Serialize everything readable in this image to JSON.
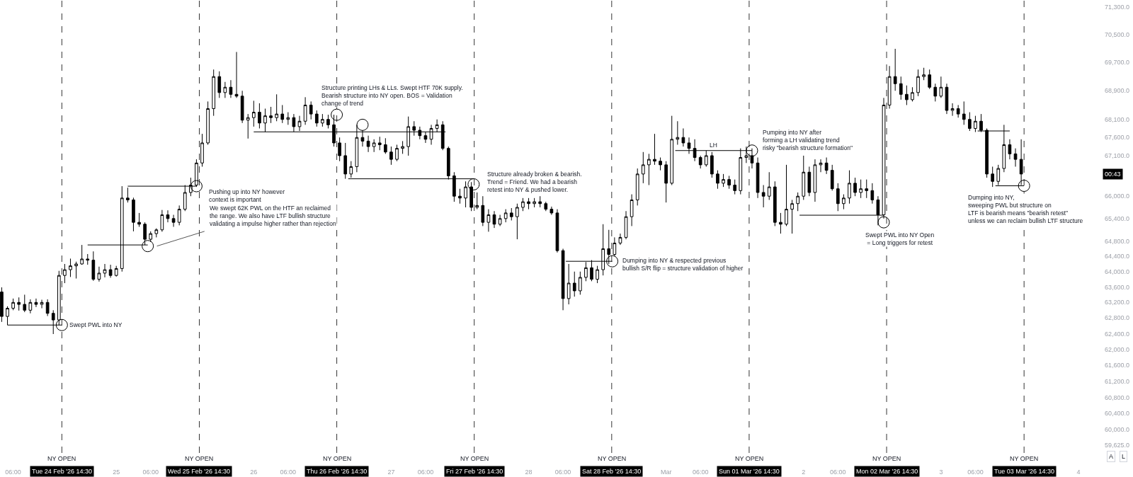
{
  "chart_data": {
    "type": "candlestick",
    "color": "#000000",
    "log": true,
    "xlim": [
      "2026-02-24T03:42",
      "2026-03-04"
    ],
    "ylim": [
      59625,
      71500
    ],
    "xticks": [
      {
        "value": "2026-02-24T06:00",
        "label": "06:00"
      },
      {
        "value": "2026-02-24T14:30",
        "label": "Tue 24 Feb '26 14:30"
      },
      {
        "value": "2026-02-25",
        "label": "25"
      },
      {
        "value": "2026-02-25T06:00",
        "label": "06:00"
      },
      {
        "value": "2026-02-25T14:30",
        "label": "Wed 25 Feb '26 14:30"
      },
      {
        "value": "2026-02-26",
        "label": "26"
      },
      {
        "value": "2026-02-26T06:00",
        "label": "06:00"
      },
      {
        "value": "2026-02-26T14:30",
        "label": "Thu 26 Feb '26 14:30"
      },
      {
        "value": "2026-02-27",
        "label": "27"
      },
      {
        "value": "2026-02-27T06:00",
        "label": "06:00"
      },
      {
        "value": "2026-02-27T14:30",
        "label": "Fri 27 Feb '26 14:30"
      },
      {
        "value": "2026-02-28",
        "label": "28"
      },
      {
        "value": "2026-02-28T06:00",
        "label": "06:00"
      },
      {
        "value": "2026-02-28T14:30",
        "label": "Sat 28 Feb '26 14:30"
      },
      {
        "value": "2026-03-01",
        "label": "Mar"
      },
      {
        "value": "2026-03-01T06:00",
        "label": "06:00"
      },
      {
        "value": "2026-03-01T14:30",
        "label": "Sun 01 Mar '26 14:30"
      },
      {
        "value": "2026-03-02",
        "label": "2"
      },
      {
        "value": "2026-03-02T06:00",
        "label": "06:00"
      },
      {
        "value": "2026-03-02T14:30",
        "label": "Mon 02 Mar '26 14:30"
      },
      {
        "value": "2026-03-03",
        "label": "3"
      },
      {
        "value": "2026-03-03T06:00",
        "label": "06:00"
      },
      {
        "value": "2026-03-03T14:30",
        "label": "Tue 03 Mar '26 14:30"
      },
      {
        "value": "2026-03-04",
        "label": "4"
      }
    ],
    "yticks": [
      {
        "value": 71300,
        "label": "71,300.0"
      },
      {
        "value": 70500,
        "label": "70,500.0"
      },
      {
        "value": 69700,
        "label": "69,700.0"
      },
      {
        "value": 68900,
        "label": "68,900.0"
      },
      {
        "value": 68100,
        "label": "68,100.0"
      },
      {
        "value": 67600,
        "label": "67,600.0"
      },
      {
        "value": 67100,
        "label": "67,100.0"
      },
      {
        "value": 66000,
        "label": "66,000.0"
      },
      {
        "value": 65400,
        "label": "65,400.0"
      },
      {
        "value": 64800,
        "label": "64,800.0"
      },
      {
        "value": 64400,
        "label": "64,400.0"
      },
      {
        "value": 64000,
        "label": "64,000.0"
      },
      {
        "value": 63600,
        "label": "63,600.0"
      },
      {
        "value": 63200,
        "label": "63,200.0"
      },
      {
        "value": 62800,
        "label": "62,800.0"
      },
      {
        "value": 62400,
        "label": "62,400.0"
      },
      {
        "value": 62000,
        "label": "62,000.0"
      },
      {
        "value": 61600,
        "label": "61,600.0"
      },
      {
        "value": 61200,
        "label": "61,200.0"
      },
      {
        "value": 60800,
        "label": "60,800.0"
      },
      {
        "value": 60400,
        "label": "60,400.0"
      },
      {
        "value": 60000,
        "label": "60,000.0"
      },
      {
        "value": 59625,
        "label": "59,625.0"
      }
    ],
    "x": [
      "2026-02-24T04:00",
      "2026-02-24T05:00",
      "2026-02-24T06:00",
      "2026-02-24T07:00",
      "2026-02-24T08:00",
      "2026-02-24T09:00",
      "2026-02-24T10:00",
      "2026-02-24T11:00",
      "2026-02-24T12:00",
      "2026-02-24T13:00",
      "2026-02-24T14:00",
      "2026-02-24T15:00",
      "2026-02-24T16:00",
      "2026-02-24T17:00",
      "2026-02-24T18:00",
      "2026-02-24T19:00",
      "2026-02-24T20:00",
      "2026-02-24T21:00",
      "2026-02-24T22:00",
      "2026-02-24T23:00",
      "2026-02-25T00:00",
      "2026-02-25T01:00",
      "2026-02-25T02:00",
      "2026-02-25T03:00",
      "2026-02-25T04:00",
      "2026-02-25T05:00",
      "2026-02-25T06:00",
      "2026-02-25T07:00",
      "2026-02-25T08:00",
      "2026-02-25T09:00",
      "2026-02-25T10:00",
      "2026-02-25T11:00",
      "2026-02-25T12:00",
      "2026-02-25T13:00",
      "2026-02-25T14:00",
      "2026-02-25T15:00",
      "2026-02-25T16:00",
      "2026-02-25T17:00",
      "2026-02-25T18:00",
      "2026-02-25T19:00",
      "2026-02-25T20:00",
      "2026-02-25T21:00",
      "2026-02-25T22:00",
      "2026-02-25T23:00",
      "2026-02-26T00:00",
      "2026-02-26T01:00",
      "2026-02-26T02:00",
      "2026-02-26T03:00",
      "2026-02-26T04:00",
      "2026-02-26T05:00",
      "2026-02-26T06:00",
      "2026-02-26T07:00",
      "2026-02-26T08:00",
      "2026-02-26T09:00",
      "2026-02-26T10:00",
      "2026-02-26T11:00",
      "2026-02-26T12:00",
      "2026-02-26T13:00",
      "2026-02-26T14:00",
      "2026-02-26T15:00",
      "2026-02-26T16:00",
      "2026-02-26T17:00",
      "2026-02-26T18:00",
      "2026-02-26T19:00",
      "2026-02-26T20:00",
      "2026-02-26T21:00",
      "2026-02-26T22:00",
      "2026-02-26T23:00",
      "2026-02-27T00:00",
      "2026-02-27T01:00",
      "2026-02-27T02:00",
      "2026-02-27T03:00",
      "2026-02-27T04:00",
      "2026-02-27T05:00",
      "2026-02-27T06:00",
      "2026-02-27T07:00",
      "2026-02-27T08:00",
      "2026-02-27T09:00",
      "2026-02-27T10:00",
      "2026-02-27T11:00",
      "2026-02-27T12:00",
      "2026-02-27T13:00",
      "2026-02-27T14:00",
      "2026-02-27T15:00",
      "2026-02-27T16:00",
      "2026-02-27T17:00",
      "2026-02-27T18:00",
      "2026-02-27T19:00",
      "2026-02-27T20:00",
      "2026-02-27T21:00",
      "2026-02-27T22:00",
      "2026-02-27T23:00",
      "2026-02-28T00:00",
      "2026-02-28T01:00",
      "2026-02-28T02:00",
      "2026-02-28T03:00",
      "2026-02-28T04:00",
      "2026-02-28T05:00",
      "2026-02-28T06:00",
      "2026-02-28T07:00",
      "2026-02-28T08:00",
      "2026-02-28T09:00",
      "2026-02-28T10:00",
      "2026-02-28T11:00",
      "2026-02-28T12:00",
      "2026-02-28T13:00",
      "2026-02-28T14:00",
      "2026-02-28T15:00",
      "2026-02-28T16:00",
      "2026-02-28T17:00",
      "2026-02-28T18:00",
      "2026-02-28T19:00",
      "2026-02-28T20:00",
      "2026-02-28T21:00",
      "2026-02-28T22:00",
      "2026-02-28T23:00",
      "2026-03-01T00:00",
      "2026-03-01T01:00",
      "2026-03-01T02:00",
      "2026-03-01T03:00",
      "2026-03-01T04:00",
      "2026-03-01T05:00",
      "2026-03-01T06:00",
      "2026-03-01T07:00",
      "2026-03-01T08:00",
      "2026-03-01T09:00",
      "2026-03-01T10:00",
      "2026-03-01T11:00",
      "2026-03-01T12:00",
      "2026-03-01T13:00",
      "2026-03-01T14:00",
      "2026-03-01T15:00",
      "2026-03-01T16:00",
      "2026-03-01T17:00",
      "2026-03-01T18:00",
      "2026-03-01T19:00",
      "2026-03-01T20:00",
      "2026-03-01T21:00",
      "2026-03-01T22:00",
      "2026-03-01T23:00",
      "2026-03-02T00:00",
      "2026-03-02T01:00",
      "2026-03-02T02:00",
      "2026-03-02T03:00",
      "2026-03-02T04:00",
      "2026-03-02T05:00",
      "2026-03-02T06:00",
      "2026-03-02T07:00",
      "2026-03-02T08:00",
      "2026-03-02T09:00",
      "2026-03-02T10:00",
      "2026-03-02T11:00",
      "2026-03-02T12:00",
      "2026-03-02T13:00",
      "2026-03-02T14:00",
      "2026-03-02T15:00",
      "2026-03-02T16:00",
      "2026-03-02T17:00",
      "2026-03-02T18:00",
      "2026-03-02T19:00",
      "2026-03-02T20:00",
      "2026-03-02T21:00",
      "2026-03-02T22:00",
      "2026-03-02T23:00",
      "2026-03-03T00:00",
      "2026-03-03T01:00",
      "2026-03-03T02:00",
      "2026-03-03T03:00",
      "2026-03-03T04:00",
      "2026-03-03T05:00",
      "2026-03-03T06:00",
      "2026-03-03T07:00",
      "2026-03-03T08:00",
      "2026-03-03T09:00",
      "2026-03-03T10:00",
      "2026-03-03T11:00",
      "2026-03-03T12:00",
      "2026-03-03T13:00",
      "2026-03-03T14:00"
    ],
    "ohlc": [
      [
        63470,
        63590,
        62700,
        62840
      ],
      [
        62840,
        63100,
        62620,
        63050
      ],
      [
        63050,
        63300,
        63000,
        63200
      ],
      [
        63200,
        63330,
        62990,
        63150
      ],
      [
        63150,
        63400,
        62950,
        63000
      ],
      [
        63000,
        63280,
        62920,
        63200
      ],
      [
        63200,
        63300,
        63080,
        63150
      ],
      [
        63150,
        63270,
        63050,
        63200
      ],
      [
        63200,
        63280,
        62850,
        62920
      ],
      [
        62920,
        63000,
        62390,
        62750
      ],
      [
        62750,
        64020,
        62620,
        63900
      ],
      [
        63900,
        64200,
        63700,
        64050
      ],
      [
        64050,
        64340,
        63860,
        64150
      ],
      [
        64150,
        64260,
        63820,
        64200
      ],
      [
        64200,
        64700,
        64180,
        64330
      ],
      [
        64330,
        64460,
        64180,
        64300
      ],
      [
        64300,
        64530,
        63760,
        63800
      ],
      [
        63800,
        64130,
        63740,
        63960
      ],
      [
        63960,
        64200,
        63850,
        64050
      ],
      [
        64050,
        64180,
        63840,
        63900
      ],
      [
        63900,
        64150,
        63870,
        64080
      ],
      [
        64080,
        66270,
        64000,
        65950
      ],
      [
        65950,
        66230,
        65830,
        65900
      ],
      [
        65900,
        65960,
        65060,
        65300
      ],
      [
        65300,
        65550,
        65180,
        65250
      ],
      [
        65250,
        65300,
        64700,
        64850
      ],
      [
        64850,
        65060,
        64780,
        65000
      ],
      [
        65000,
        65140,
        64900,
        65100
      ],
      [
        65100,
        65630,
        65050,
        65500
      ],
      [
        65500,
        65620,
        65300,
        65400
      ],
      [
        65400,
        65500,
        65180,
        65300
      ],
      [
        65300,
        65750,
        65220,
        65650
      ],
      [
        65650,
        66300,
        65600,
        66100
      ],
      [
        66100,
        66500,
        66000,
        66300
      ],
      [
        66300,
        67000,
        66250,
        66900
      ],
      [
        66900,
        67700,
        66800,
        67450
      ],
      [
        67450,
        68600,
        67400,
        68400
      ],
      [
        68400,
        69500,
        68200,
        69300
      ],
      [
        69300,
        69450,
        68700,
        68850
      ],
      [
        68850,
        69150,
        68700,
        69000
      ],
      [
        69000,
        69200,
        68700,
        68800
      ],
      [
        68800,
        70000,
        68700,
        68750
      ],
      [
        68750,
        68900,
        68000,
        68080
      ],
      [
        68080,
        68250,
        67570,
        68150
      ],
      [
        68150,
        68620,
        67900,
        68300
      ],
      [
        68300,
        68550,
        67850,
        68000
      ],
      [
        68000,
        68400,
        67760,
        68200
      ],
      [
        68200,
        68450,
        68000,
        68150
      ],
      [
        68150,
        68800,
        68050,
        68250
      ],
      [
        68250,
        68500,
        68000,
        68100
      ],
      [
        68100,
        68300,
        67950,
        68150
      ],
      [
        68150,
        68250,
        67760,
        67900
      ],
      [
        67900,
        68200,
        67780,
        68050
      ],
      [
        68050,
        68720,
        67950,
        68500
      ],
      [
        68500,
        68600,
        68100,
        68250
      ],
      [
        68250,
        68350,
        67900,
        68000
      ],
      [
        68000,
        68250,
        67900,
        68100
      ],
      [
        68100,
        68230,
        67850,
        67950
      ],
      [
        67950,
        68230,
        67350,
        67450
      ],
      [
        67450,
        67600,
        66950,
        67100
      ],
      [
        67100,
        67450,
        66470,
        66600
      ],
      [
        66600,
        66950,
        66500,
        66800
      ],
      [
        66800,
        67950,
        66650,
        67600
      ],
      [
        67600,
        67800,
        67350,
        67500
      ],
      [
        67500,
        67650,
        67200,
        67350
      ],
      [
        67350,
        67550,
        67200,
        67450
      ],
      [
        67450,
        67620,
        67250,
        67400
      ],
      [
        67400,
        67580,
        67150,
        67200
      ],
      [
        67200,
        67350,
        66850,
        67000
      ],
      [
        67000,
        67400,
        66950,
        67300
      ],
      [
        67300,
        67500,
        67150,
        67350
      ],
      [
        67350,
        68180,
        67100,
        67900
      ],
      [
        67900,
        68050,
        67650,
        67800
      ],
      [
        67800,
        67900,
        67550,
        67650
      ],
      [
        67650,
        67750,
        67450,
        67550
      ],
      [
        67550,
        67950,
        67400,
        67850
      ],
      [
        67850,
        68100,
        67750,
        67950
      ],
      [
        67950,
        68050,
        67250,
        67300
      ],
      [
        67300,
        67350,
        66450,
        66550
      ],
      [
        66550,
        66650,
        65850,
        66000
      ],
      [
        66000,
        66200,
        65800,
        65950
      ],
      [
        65950,
        66400,
        65700,
        66250
      ],
      [
        66250,
        66380,
        65600,
        65700
      ],
      [
        65700,
        66100,
        65650,
        65750
      ],
      [
        65750,
        66000,
        65200,
        65300
      ],
      [
        65300,
        65650,
        65050,
        65500
      ],
      [
        65500,
        65600,
        65150,
        65250
      ],
      [
        65250,
        65500,
        65200,
        65400
      ],
      [
        65400,
        65650,
        65300,
        65550
      ],
      [
        65550,
        65680,
        65350,
        65450
      ],
      [
        65450,
        65800,
        64850,
        65700
      ],
      [
        65700,
        65950,
        65600,
        65850
      ],
      [
        65850,
        65950,
        65650,
        65800
      ],
      [
        65800,
        65950,
        65700,
        65850
      ],
      [
        65850,
        66000,
        65700,
        65800
      ],
      [
        65800,
        65850,
        65600,
        65650
      ],
      [
        65650,
        65720,
        65500,
        65550
      ],
      [
        65550,
        65650,
        64500,
        64550
      ],
      [
        64550,
        64600,
        63000,
        63300
      ],
      [
        63300,
        64200,
        63150,
        63700
      ],
      [
        63700,
        64000,
        63350,
        63500
      ],
      [
        63500,
        64000,
        63400,
        63850
      ],
      [
        63850,
        64250,
        63750,
        64100
      ],
      [
        64100,
        64300,
        63750,
        63800
      ],
      [
        63800,
        64150,
        63700,
        64050
      ],
      [
        64050,
        65250,
        63900,
        64600
      ],
      [
        64600,
        65100,
        64200,
        64450
      ],
      [
        64450,
        64900,
        64400,
        64750
      ],
      [
        64750,
        65000,
        64700,
        64900
      ],
      [
        64900,
        65600,
        64850,
        65450
      ],
      [
        65450,
        66050,
        65200,
        65900
      ],
      [
        65900,
        66750,
        65750,
        66600
      ],
      [
        66600,
        67200,
        66350,
        66850
      ],
      [
        66850,
        67150,
        66300,
        67000
      ],
      [
        67000,
        67700,
        66850,
        66950
      ],
      [
        66950,
        67050,
        66700,
        66850
      ],
      [
        66850,
        66950,
        65830,
        66350
      ],
      [
        66350,
        68200,
        66300,
        67550
      ],
      [
        67550,
        68050,
        67400,
        67600
      ],
      [
        67600,
        67850,
        67350,
        67450
      ],
      [
        67450,
        67600,
        67150,
        67300
      ],
      [
        67300,
        67550,
        66950,
        67050
      ],
      [
        67050,
        67100,
        66750,
        66850
      ],
      [
        66850,
        67240,
        66800,
        67100
      ],
      [
        67100,
        67200,
        66500,
        66600
      ],
      [
        66600,
        66700,
        66200,
        66350
      ],
      [
        66350,
        66600,
        66250,
        66450
      ],
      [
        66450,
        66550,
        66200,
        66300
      ],
      [
        66300,
        66450,
        66050,
        66150
      ],
      [
        66150,
        67300,
        66050,
        67050
      ],
      [
        67050,
        67350,
        66900,
        67100
      ],
      [
        67100,
        67300,
        66750,
        66900
      ],
      [
        66900,
        67050,
        65950,
        66100
      ],
      [
        66100,
        66300,
        65700,
        66000
      ],
      [
        66000,
        66650,
        65900,
        66250
      ],
      [
        66250,
        66400,
        65200,
        65300
      ],
      [
        65300,
        65550,
        65000,
        65250
      ],
      [
        65250,
        66850,
        65200,
        65650
      ],
      [
        65650,
        65900,
        65000,
        65800
      ],
      [
        65800,
        66100,
        65600,
        66000
      ],
      [
        66000,
        67100,
        65900,
        66650
      ],
      [
        66650,
        66800,
        66000,
        66100
      ],
      [
        66100,
        67000,
        65850,
        66850
      ],
      [
        66850,
        67000,
        66650,
        66900
      ],
      [
        66900,
        67050,
        66600,
        66700
      ],
      [
        66700,
        66850,
        66150,
        66200
      ],
      [
        66200,
        66350,
        65600,
        65800
      ],
      [
        65800,
        66050,
        65650,
        65950
      ],
      [
        65950,
        66700,
        65800,
        66350
      ],
      [
        66350,
        66500,
        66000,
        66100
      ],
      [
        66100,
        66450,
        65950,
        66200
      ],
      [
        66200,
        66450,
        65950,
        66150
      ],
      [
        66150,
        66350,
        65800,
        65900
      ],
      [
        65900,
        66000,
        65220,
        65500
      ],
      [
        65500,
        68700,
        65400,
        68500
      ],
      [
        68500,
        69600,
        68400,
        69300
      ],
      [
        69300,
        70090,
        68900,
        69100
      ],
      [
        69100,
        69300,
        68650,
        68800
      ],
      [
        68800,
        69050,
        68500,
        68650
      ],
      [
        68650,
        69000,
        68600,
        68850
      ],
      [
        68850,
        69500,
        68750,
        69300
      ],
      [
        69300,
        69550,
        69200,
        69350
      ],
      [
        69350,
        69500,
        68950,
        69000
      ],
      [
        69000,
        69100,
        68600,
        68750
      ],
      [
        68750,
        69300,
        68700,
        69000
      ],
      [
        69000,
        69100,
        68250,
        68350
      ],
      [
        68350,
        68550,
        68200,
        68400
      ],
      [
        68400,
        68500,
        68150,
        68250
      ],
      [
        68250,
        68600,
        67950,
        68100
      ],
      [
        68100,
        68300,
        67780,
        67850
      ],
      [
        67850,
        68200,
        67750,
        68050
      ],
      [
        68050,
        68250,
        67750,
        67800
      ],
      [
        67800,
        67850,
        66500,
        66600
      ],
      [
        66600,
        66800,
        66250,
        66400
      ],
      [
        66400,
        66850,
        66300,
        66750
      ],
      [
        66750,
        67950,
        66650,
        67400
      ],
      [
        67400,
        67550,
        67000,
        67150
      ],
      [
        67150,
        67300,
        66800,
        67000
      ],
      [
        67000,
        67550,
        66300,
        66600
      ]
    ],
    "series": [
      {
        "type": "line",
        "color": "#000000",
        "x": [
          "2026-02-24T05:00",
          "2026-02-24T14:30"
        ],
        "values": [
          62620,
          62620
        ]
      },
      {
        "type": "line",
        "color": "#000000",
        "x": [
          "2026-02-24T19:00",
          "2026-02-25T05:30"
        ],
        "values": [
          64700,
          64700
        ]
      },
      {
        "type": "line",
        "color": "#000000",
        "x": [
          "2026-02-25T02:00",
          "2026-02-25T14:00"
        ],
        "values": [
          66270,
          66270
        ]
      },
      {
        "type": "line",
        "color": "#555555",
        "x": [
          "2026-02-25T07:06",
          "2026-02-25T15:24"
        ],
        "values": [
          64670,
          65060
        ]
      },
      {
        "type": "line",
        "color": "#000000",
        "x": [
          "2026-02-26T00:00",
          "2026-02-27T09:30"
        ],
        "values": [
          67755,
          67755
        ]
      },
      {
        "type": "line",
        "color": "#000000",
        "x": [
          "2026-02-26T16:30",
          "2026-02-27T14:24"
        ],
        "values": [
          66470,
          66470
        ]
      },
      {
        "type": "line",
        "color": "#000000",
        "x": [
          "2026-02-28T06:30",
          "2026-02-28T14:36"
        ],
        "values": [
          64270,
          64270
        ]
      },
      {
        "type": "line",
        "color": "#000000",
        "x": [
          "2026-03-01T01:36",
          "2026-03-01T15:00"
        ],
        "values": [
          67240,
          67240
        ]
      },
      {
        "type": "line",
        "color": "#000000",
        "x": [
          "2026-03-01T23:18",
          "2026-03-02T14:00"
        ],
        "values": [
          65490,
          65490
        ]
      },
      {
        "type": "line",
        "color": "#000000",
        "x": [
          "2026-03-03T06:24",
          "2026-03-03T12:00"
        ],
        "values": [
          67780,
          67780
        ]
      },
      {
        "type": "line",
        "color": "#000000",
        "x": [
          "2026-03-03T09:30",
          "2026-03-03T14:30"
        ],
        "values": [
          66280,
          66280
        ]
      },
      {
        "type": "scatter",
        "marker": "circle",
        "color": "#000000",
        "x": [
          "2026-02-24T14:30",
          "2026-02-25T05:30",
          "2026-02-25T14:00",
          "2026-02-26T14:30",
          "2026-02-26T19:00",
          "2026-02-27T14:24",
          "2026-02-28T14:36",
          "2026-03-01T15:00",
          "2026-03-02T14:00",
          "2026-03-03T14:30"
        ],
        "values": [
          62620,
          64670,
          66270,
          68230,
          67950,
          66320,
          64270,
          67240,
          65300,
          66280
        ]
      }
    ],
    "ref_lines": [
      {
        "axis": "x",
        "value": "2026-02-24T14:30",
        "label": "NY OPEN",
        "line_style": "dashed",
        "color": "#333333"
      },
      {
        "axis": "x",
        "value": "2026-02-25T14:30",
        "label": "NY OPEN",
        "line_style": "dashed",
        "color": "#333333"
      },
      {
        "axis": "x",
        "value": "2026-02-26T14:30",
        "label": "NY OPEN",
        "line_style": "dashed",
        "color": "#333333"
      },
      {
        "axis": "x",
        "value": "2026-02-27T14:30",
        "label": "NY OPEN",
        "line_style": "dashed",
        "color": "#333333"
      },
      {
        "axis": "x",
        "value": "2026-02-28T14:30",
        "label": "NY OPEN",
        "line_style": "dashed",
        "color": "#333333"
      },
      {
        "axis": "x",
        "value": "2026-03-01T14:30",
        "label": "NY OPEN",
        "line_style": "dashed",
        "color": "#333333"
      },
      {
        "axis": "x",
        "value": "2026-03-02T14:30",
        "label": "NY OPEN",
        "line_style": "dashed",
        "color": "#333333"
      },
      {
        "axis": "x",
        "value": "2026-03-03T14:30",
        "label": "NY OPEN",
        "line_style": "dashed",
        "color": "#333333"
      }
    ],
    "annotations": [
      {
        "text": "Swept PWL into NY",
        "x": "2026-02-24T14:30",
        "y": 62620
      },
      {
        "text": "Pushing up into NY however\ncontext is important",
        "x": "2026-02-25T14:00",
        "y": 66270
      },
      {
        "text": "We swept 62K PWL on the HTF an reclaimed\nthe range. We also have LTF bullish structure\nvalidating a impulse higher rather than rejection",
        "x": "2026-02-25T15:24",
        "y": 65060
      },
      {
        "text": "Structure printing LHs & LLs. Swept HTF 70K supply.\nBearish structure into NY open. BOS = Validation\nchange of trend",
        "x": "2026-02-26T14:30",
        "y": 68230
      },
      {
        "text": "Structure already broken & bearish.\nTrend = Friend. We had a bearish\nretest into NY & pushed lower.",
        "x": "2026-02-27T14:24",
        "y": 66320
      },
      {
        "text": "Dumping into NY & respected previous\nbullish S/R flip = structure validation of higher",
        "x": "2026-02-28T14:36",
        "y": 64270
      },
      {
        "text": "LH",
        "x": "2026-03-01T08:14",
        "y": 67240
      },
      {
        "text": "Pumping into NY after\nforming a LH validating trend\nrisky \"bearish structure formation\"",
        "x": "2026-03-01T15:00",
        "y": 67240
      },
      {
        "text": "Swept PWL into NY Open\n = Long triggers for retest",
        "x": "2026-03-02T14:00",
        "y": 65300
      },
      {
        "text": "Dumping into NY,\nsweeping PWL but structure on\nLTF is bearish means \"bearish retest\"\nunless we can reclaim bullish LTF structure",
        "x": "2026-03-03T14:30",
        "y": 66280
      },
      "00:43",
      "A",
      "L"
    ]
  }
}
